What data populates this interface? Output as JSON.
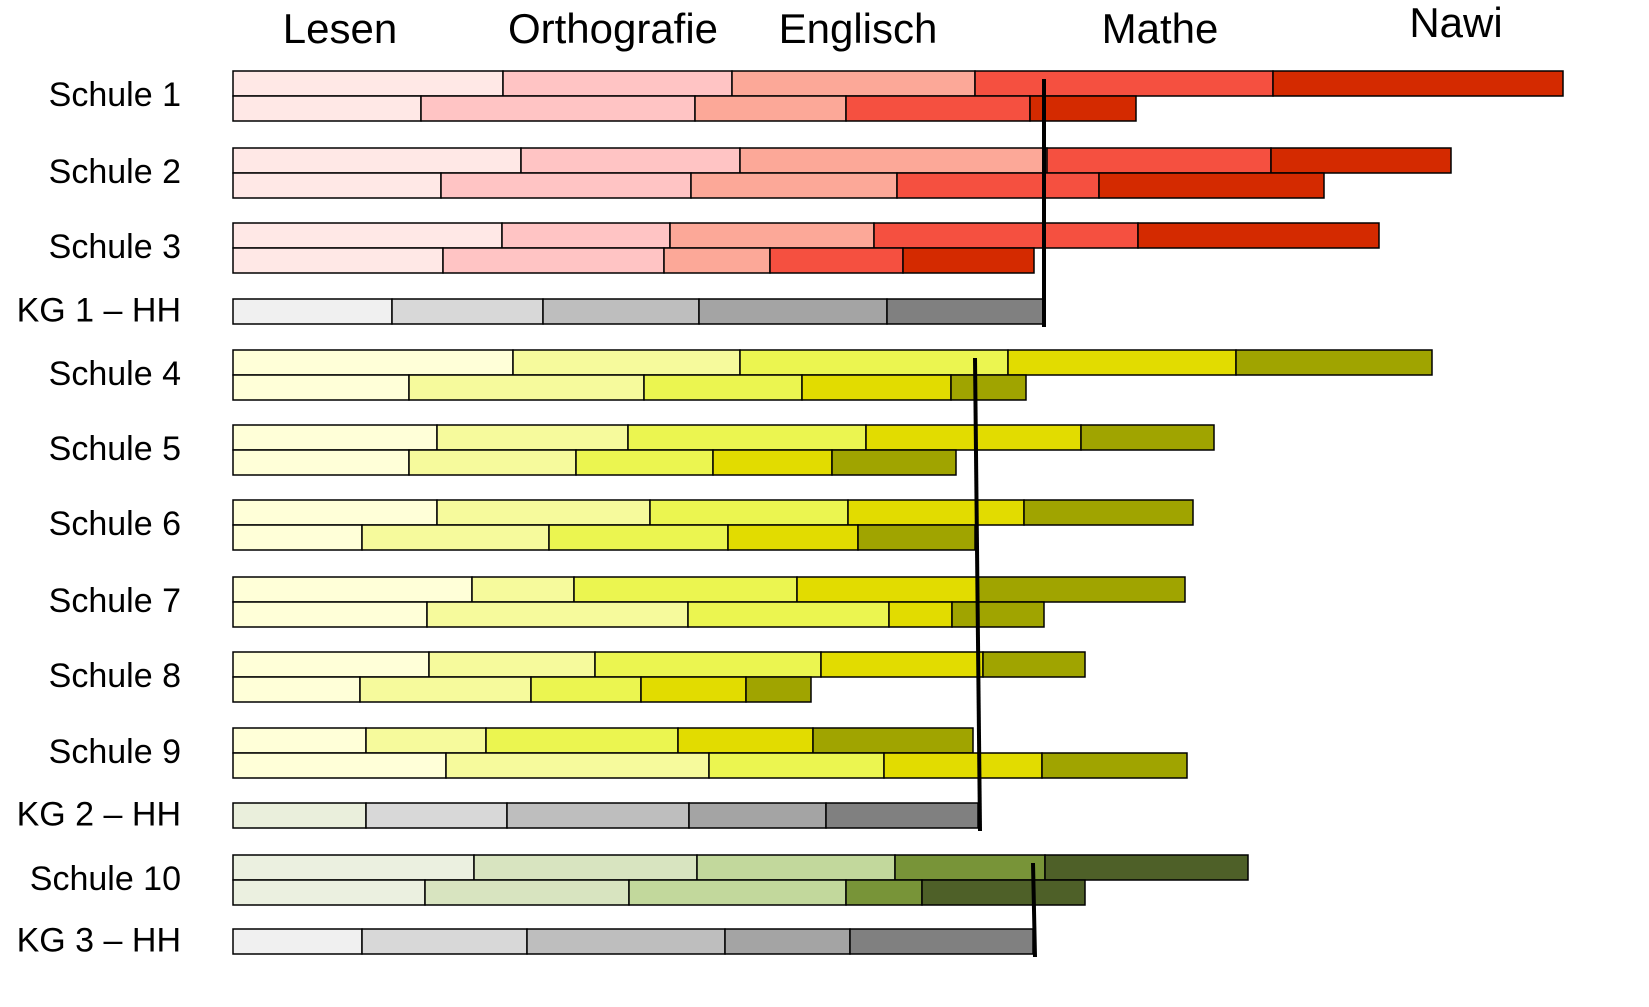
{
  "chart_data": {
    "type": "bar",
    "orientation": "horizontal",
    "stacked": true,
    "columns": [
      "Lesen",
      "Orthografie",
      "Englisch",
      "Mathe",
      "Nawi"
    ],
    "xlim": [
      0,
      1340
    ],
    "rows": [
      {
        "label": "Schule 1",
        "colors": [
          "#ffe8e6",
          "#ffc4c4",
          "#fca898",
          "#f55040",
          "#d42a00"
        ],
        "bars": [
          [
            270,
            229,
            243,
            298,
            290
          ],
          [
            188,
            274,
            151,
            184,
            106
          ]
        ]
      },
      {
        "label": "Schule 2",
        "colors": [
          "#ffe8e6",
          "#ffc4c4",
          "#fca898",
          "#f55040",
          "#d42a00"
        ],
        "bars": [
          [
            288,
            219,
            307,
            224,
            180
          ],
          [
            208,
            250,
            206,
            202,
            225
          ]
        ]
      },
      {
        "label": "Schule 3",
        "colors": [
          "#ffe8e6",
          "#ffc4c4",
          "#fca898",
          "#f55040",
          "#d42a00"
        ],
        "bars": [
          [
            269,
            168,
            204,
            264,
            241
          ],
          [
            210,
            221,
            106,
            133,
            131
          ]
        ]
      },
      {
        "label": "KG 1 – HH",
        "colors": [
          "#f0f0f0",
          "#d8d8d8",
          "#bebebe",
          "#a4a4a4",
          "#808080"
        ],
        "bars": [
          [
            159,
            151,
            156,
            188,
            156
          ]
        ]
      },
      {
        "label": "Schule 4",
        "colors": [
          "#ffffd8",
          "#f6fa9c",
          "#ebf550",
          "#e2dc00",
          "#a0a400"
        ],
        "bars": [
          [
            280,
            227,
            268,
            228,
            196
          ],
          [
            176,
            235,
            158,
            149,
            75
          ]
        ]
      },
      {
        "label": "Schule 5",
        "colors": [
          "#ffffd8",
          "#f6fa9c",
          "#ebf550",
          "#e2dc00",
          "#a0a400"
        ],
        "bars": [
          [
            204,
            191,
            238,
            215,
            133
          ],
          [
            176,
            167,
            137,
            119,
            124
          ]
        ]
      },
      {
        "label": "Schule 6",
        "colors": [
          "#ffffd8",
          "#f6fa9c",
          "#ebf550",
          "#e2dc00",
          "#a0a400"
        ],
        "bars": [
          [
            204,
            213,
            198,
            176,
            169
          ],
          [
            129,
            187,
            179,
            130,
            117
          ]
        ]
      },
      {
        "label": "Schule 7",
        "colors": [
          "#ffffd8",
          "#f6fa9c",
          "#ebf550",
          "#e2dc00",
          "#a0a400"
        ],
        "bars": [
          [
            239,
            102,
            223,
            181,
            207
          ],
          [
            194,
            261,
            201,
            63,
            92
          ]
        ]
      },
      {
        "label": "Schule 8",
        "colors": [
          "#ffffd8",
          "#f6fa9c",
          "#ebf550",
          "#e2dc00",
          "#a0a400"
        ],
        "bars": [
          [
            196,
            166,
            226,
            162,
            102
          ],
          [
            127,
            171,
            110,
            105,
            65
          ]
        ]
      },
      {
        "label": "Schule 9",
        "colors": [
          "#ffffd8",
          "#f6fa9c",
          "#ebf550",
          "#e2dc00",
          "#a0a400"
        ],
        "bars": [
          [
            133,
            120,
            192,
            135,
            160
          ],
          [
            213,
            263,
            175,
            158,
            145
          ]
        ]
      },
      {
        "label": "KG 2 – HH",
        "colors": [
          "#eaefdc",
          "#d8d8d8",
          "#bebebe",
          "#a4a4a4",
          "#808080"
        ],
        "bars": [
          [
            133,
            141,
            182,
            137,
            152
          ]
        ]
      },
      {
        "label": "Schule 10",
        "colors": [
          "#ebf0e0",
          "#d8e4c0",
          "#c2d89c",
          "#789438",
          "#4e6028"
        ],
        "bars": [
          [
            241,
            223,
            198,
            150,
            203
          ],
          [
            192,
            204,
            217,
            76,
            163
          ]
        ]
      },
      {
        "label": "KG 3 – HH",
        "colors": [
          "#f0f0f0",
          "#d8d8d8",
          "#bebebe",
          "#a4a4a4",
          "#808080"
        ],
        "bars": [
          [
            129,
            165,
            198,
            125,
            183
          ]
        ]
      }
    ],
    "reference_lines": [
      [
        811,
        811
      ],
      [
        742,
        747
      ],
      [
        800,
        802
      ]
    ]
  }
}
